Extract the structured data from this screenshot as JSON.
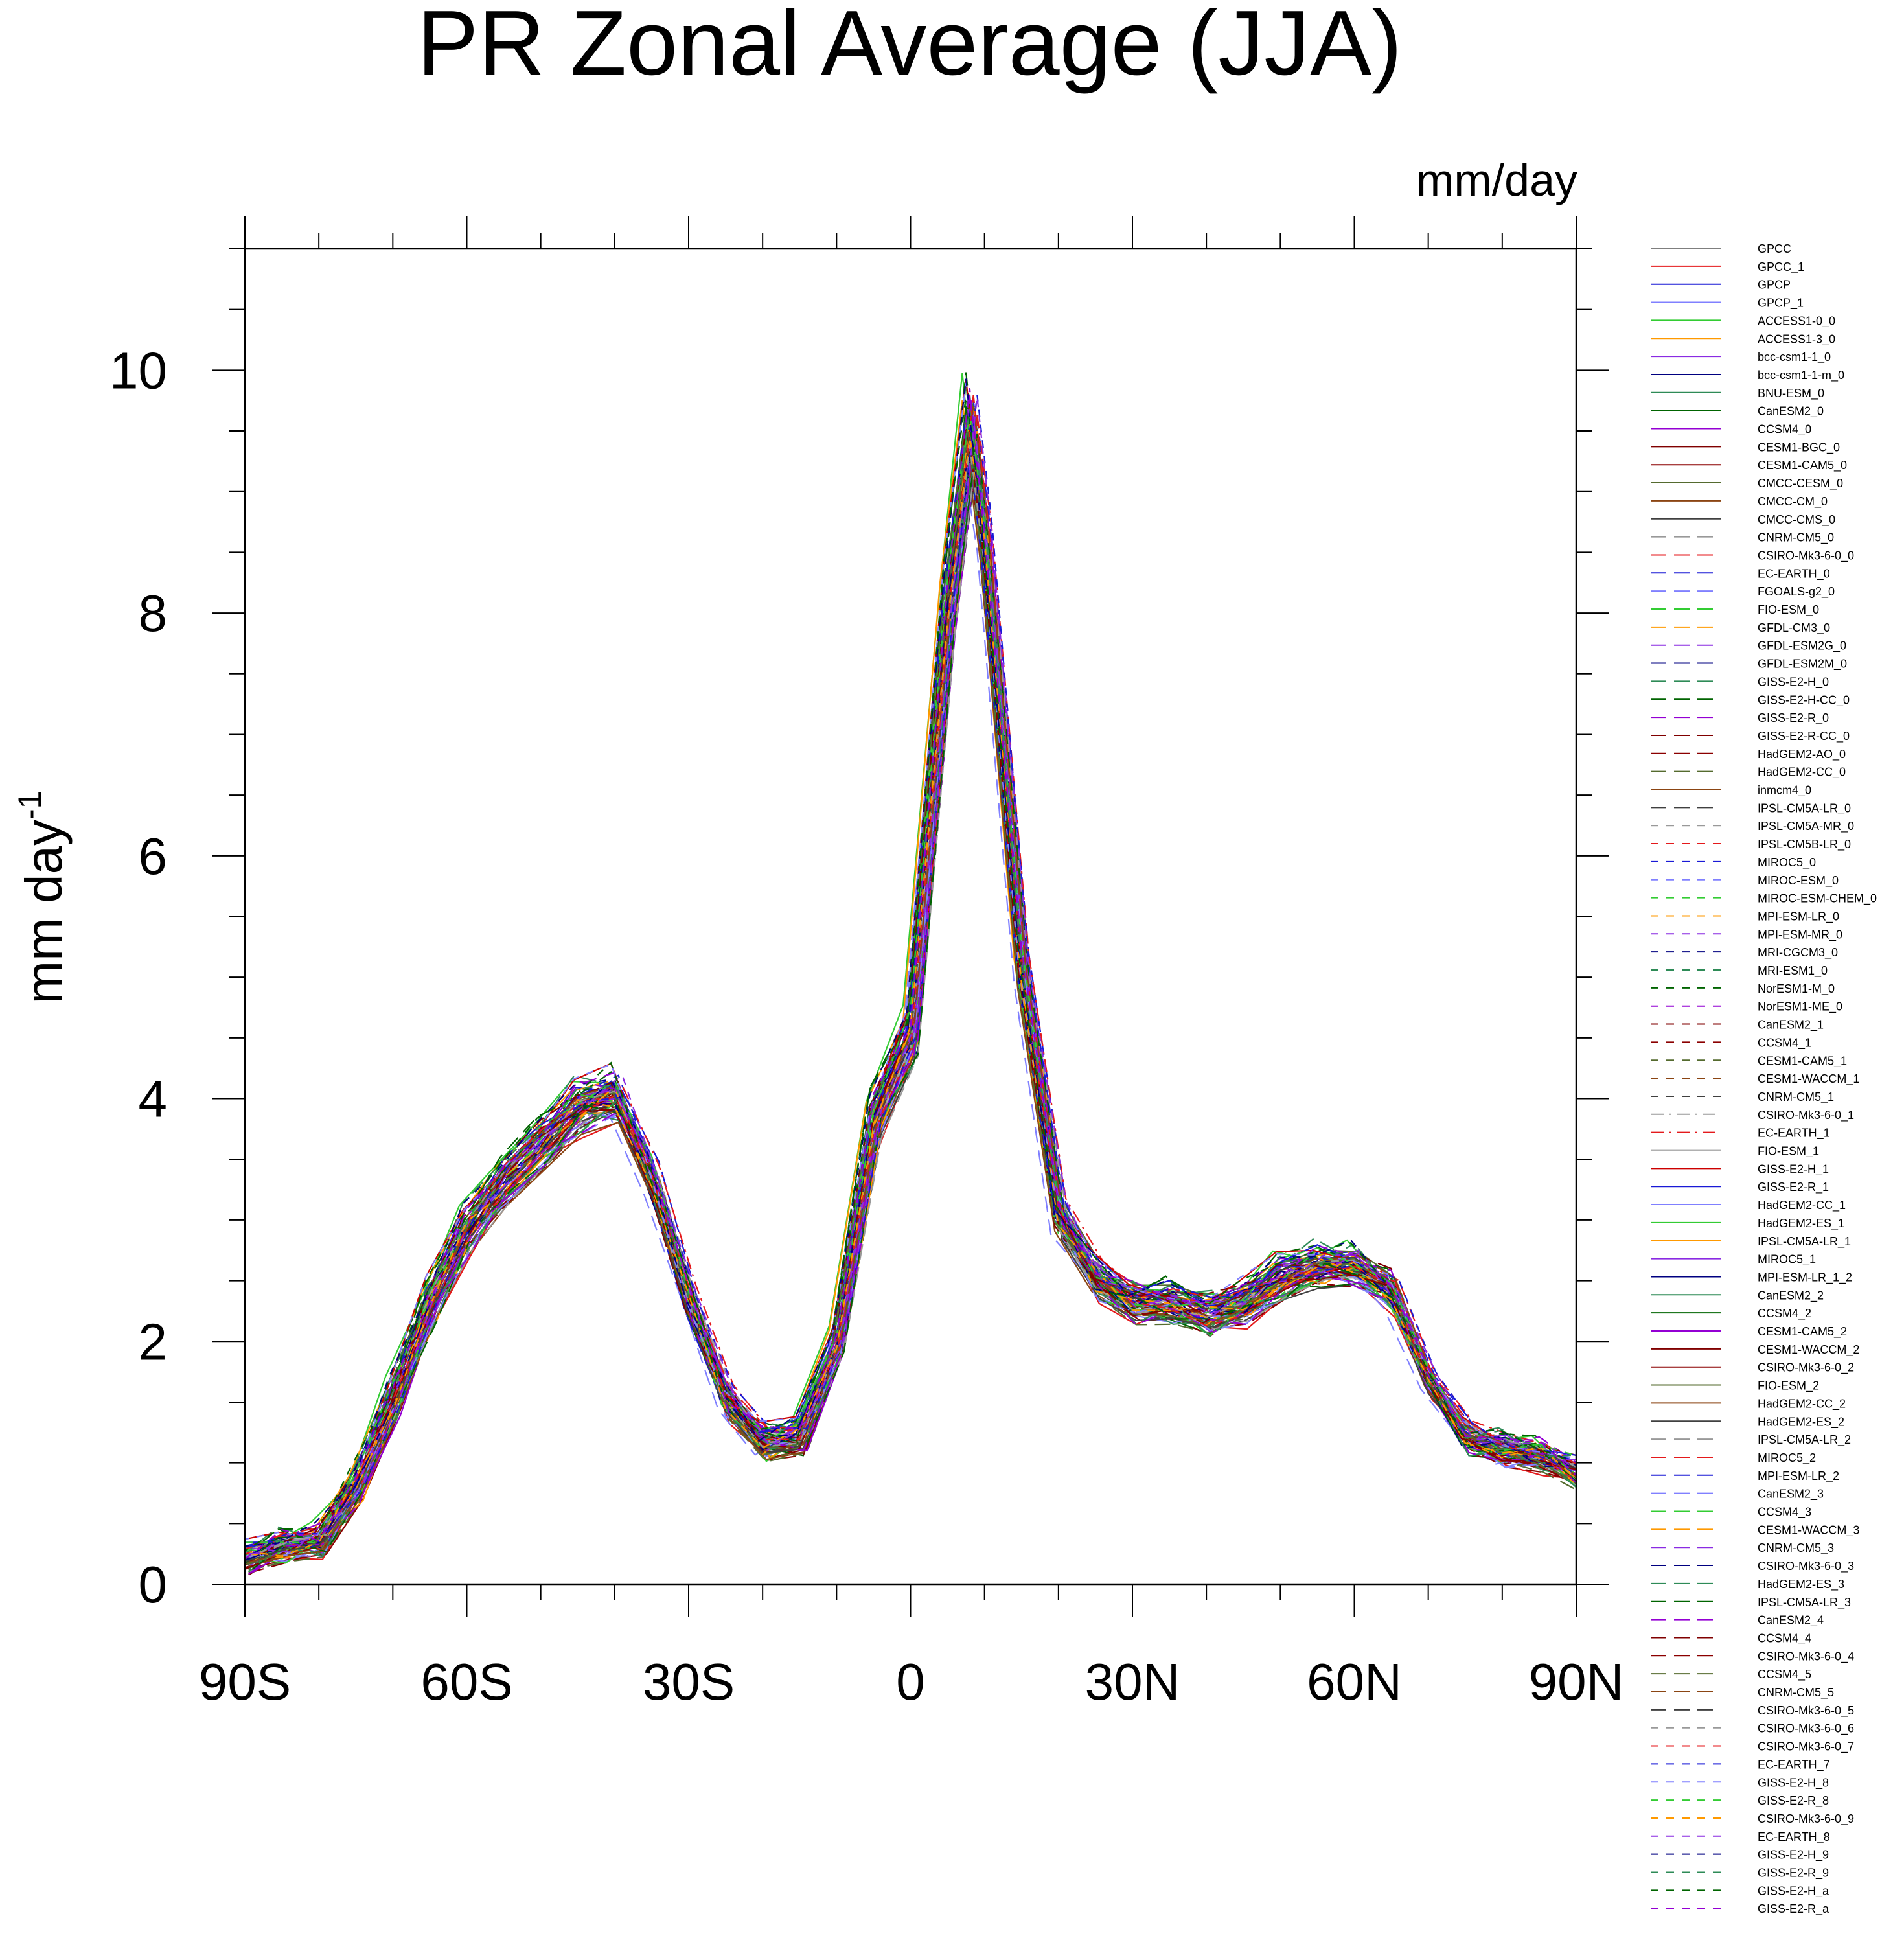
{
  "chart_data": {
    "type": "line",
    "title": "PR Zonal Average (JJA)",
    "units": "mm/day",
    "ylabel": "mm day",
    "ylabel_sup": "-1",
    "xlabel": "",
    "xlim": [
      -90,
      90
    ],
    "ylim": [
      0,
      11
    ],
    "xticks": [
      {
        "value": -90,
        "label": "90S"
      },
      {
        "value": -60,
        "label": "60S"
      },
      {
        "value": -30,
        "label": "30S"
      },
      {
        "value": 0,
        "label": "0"
      },
      {
        "value": 30,
        "label": "30N"
      },
      {
        "value": 60,
        "label": "60N"
      },
      {
        "value": 90,
        "label": "90N"
      }
    ],
    "yticks": [
      {
        "value": 0,
        "label": "0"
      },
      {
        "value": 2,
        "label": "2"
      },
      {
        "value": 4,
        "label": "4"
      },
      {
        "value": 6,
        "label": "6"
      },
      {
        "value": 8,
        "label": "8"
      },
      {
        "value": 10,
        "label": "10"
      }
    ],
    "x": [
      -90,
      -85,
      -80,
      -75,
      -70,
      -65,
      -60,
      -55,
      -50,
      -45,
      -40,
      -35,
      -30,
      -25,
      -20,
      -15,
      -10,
      -5,
      0,
      5,
      8,
      10,
      15,
      20,
      25,
      30,
      35,
      40,
      45,
      50,
      55,
      60,
      65,
      70,
      75,
      80,
      85,
      90
    ],
    "reference_profile": [
      0.2,
      0.3,
      0.35,
      0.8,
      1.5,
      2.3,
      2.9,
      3.3,
      3.6,
      3.9,
      4.0,
      3.3,
      2.3,
      1.5,
      1.15,
      1.2,
      2.0,
      3.8,
      4.5,
      8.0,
      9.5,
      8.5,
      5.0,
      3.0,
      2.5,
      2.3,
      2.3,
      2.2,
      2.3,
      2.5,
      2.6,
      2.6,
      2.4,
      1.6,
      1.2,
      1.1,
      1.05,
      0.9
    ],
    "series": [
      {
        "name": "GPCC",
        "color": "#7f7f7f",
        "dash": "solid",
        "offset": 0.05,
        "xshift": 0
      },
      {
        "name": "GPCC_1",
        "color": "#e41a1c",
        "dash": "solid",
        "offset": -0.15,
        "xshift": 0.5
      },
      {
        "name": "GPCP",
        "color": "#1a1ad6",
        "dash": "solid",
        "offset": 0.1,
        "xshift": -0.5
      },
      {
        "name": "GPCP_1",
        "color": "#8080ff",
        "dash": "solid",
        "offset": 0.0,
        "xshift": 0
      },
      {
        "name": "ACCESS1-0_0",
        "color": "#33cc33",
        "dash": "solid",
        "offset": 0.2,
        "xshift": -1
      },
      {
        "name": "ACCESS1-3_0",
        "color": "#ff9900",
        "dash": "solid",
        "offset": 0.15,
        "xshift": -1
      },
      {
        "name": "bcc-csm1-1_0",
        "color": "#8a2be2",
        "dash": "solid",
        "offset": -0.05,
        "xshift": 0.5
      },
      {
        "name": "bcc-csm1-1-m_0",
        "color": "#000080",
        "dash": "solid",
        "offset": 0.0,
        "xshift": 1
      },
      {
        "name": "BNU-ESM_0",
        "color": "#2e8b57",
        "dash": "solid",
        "offset": 0.1,
        "xshift": 0
      },
      {
        "name": "CanESM2_0",
        "color": "#006400",
        "dash": "solid",
        "offset": -0.1,
        "xshift": 0.5
      },
      {
        "name": "CCSM4_0",
        "color": "#9400d3",
        "dash": "solid",
        "offset": 0.05,
        "xshift": -0.5
      },
      {
        "name": "CESM1-BGC_0",
        "color": "#800000",
        "dash": "solid",
        "offset": 0.0,
        "xshift": 0
      },
      {
        "name": "CESM1-CAM5_0",
        "color": "#8b0000",
        "dash": "solid",
        "offset": -0.05,
        "xshift": 1
      },
      {
        "name": "CMCC-CESM_0",
        "color": "#556b2f",
        "dash": "solid",
        "offset": 0.1,
        "xshift": 0.5
      },
      {
        "name": "CMCC-CM_0",
        "color": "#8b4513",
        "dash": "solid",
        "offset": 0.0,
        "xshift": -0.5
      },
      {
        "name": "CMCC-CMS_0",
        "color": "#404040",
        "dash": "solid",
        "offset": -0.1,
        "xshift": 0
      },
      {
        "name": "CNRM-CM5_0",
        "color": "#999999",
        "dash": "long",
        "offset": 0.05,
        "xshift": 0.5
      },
      {
        "name": "CSIRO-Mk3-6-0_0",
        "color": "#e41a1c",
        "dash": "long",
        "offset": 0.0,
        "xshift": 0
      },
      {
        "name": "EC-EARTH_0",
        "color": "#1a1ad6",
        "dash": "long",
        "offset": 0.1,
        "xshift": 1
      },
      {
        "name": "FGOALS-g2_0",
        "color": "#8080ff",
        "dash": "long",
        "offset": -0.05,
        "xshift": -1
      },
      {
        "name": "FIO-ESM_0",
        "color": "#33cc33",
        "dash": "long",
        "offset": 0.0,
        "xshift": 0
      },
      {
        "name": "GFDL-CM3_0",
        "color": "#ff9900",
        "dash": "long",
        "offset": 0.05,
        "xshift": 0.5
      },
      {
        "name": "GFDL-ESM2G_0",
        "color": "#8a2be2",
        "dash": "long",
        "offset": 0.1,
        "xshift": 0
      },
      {
        "name": "GFDL-ESM2M_0",
        "color": "#000080",
        "dash": "long",
        "offset": 0.05,
        "xshift": 0.5
      },
      {
        "name": "GISS-E2-H_0",
        "color": "#2e8b57",
        "dash": "long",
        "offset": 0.2,
        "xshift": -0.5
      },
      {
        "name": "GISS-E2-H-CC_0",
        "color": "#006400",
        "dash": "long",
        "offset": 0.2,
        "xshift": -0.5
      },
      {
        "name": "GISS-E2-R_0",
        "color": "#9400d3",
        "dash": "long",
        "offset": 0.15,
        "xshift": 0
      },
      {
        "name": "GISS-E2-R-CC_0",
        "color": "#800000",
        "dash": "long",
        "offset": 0.15,
        "xshift": 0
      },
      {
        "name": "HadGEM2-AO_0",
        "color": "#8b0000",
        "dash": "long",
        "offset": -0.1,
        "xshift": 0.5
      },
      {
        "name": "HadGEM2-CC_0",
        "color": "#556b2f",
        "dash": "long",
        "offset": -0.1,
        "xshift": 0.5
      },
      {
        "name": "inmcm4_0",
        "color": "#8b4513",
        "dash": "solid",
        "offset": 0.0,
        "xshift": 0
      },
      {
        "name": "IPSL-CM5A-LR_0",
        "color": "#404040",
        "dash": "long",
        "offset": -0.05,
        "xshift": 1
      },
      {
        "name": "IPSL-CM5A-MR_0",
        "color": "#999999",
        "dash": "dash",
        "offset": 0.0,
        "xshift": 1
      },
      {
        "name": "IPSL-CM5B-LR_0",
        "color": "#e41a1c",
        "dash": "dash",
        "offset": 0.05,
        "xshift": 0
      },
      {
        "name": "MIROC5_0",
        "color": "#1a1ad6",
        "dash": "dash",
        "offset": 0.1,
        "xshift": 0.5
      },
      {
        "name": "MIROC-ESM_0",
        "color": "#8080ff",
        "dash": "dash",
        "offset": -0.05,
        "xshift": 0
      },
      {
        "name": "MIROC-ESM-CHEM_0",
        "color": "#33cc33",
        "dash": "dash",
        "offset": -0.05,
        "xshift": 0
      },
      {
        "name": "MPI-ESM-LR_0",
        "color": "#ff9900",
        "dash": "dash",
        "offset": 0.05,
        "xshift": -0.5
      },
      {
        "name": "MPI-ESM-MR_0",
        "color": "#8a2be2",
        "dash": "dash",
        "offset": 0.05,
        "xshift": -0.5
      },
      {
        "name": "MRI-CGCM3_0",
        "color": "#000080",
        "dash": "dash",
        "offset": 0.0,
        "xshift": 0.5
      },
      {
        "name": "MRI-ESM1_0",
        "color": "#2e8b57",
        "dash": "dash",
        "offset": 0.0,
        "xshift": 0.5
      },
      {
        "name": "NorESM1-M_0",
        "color": "#006400",
        "dash": "dash",
        "offset": 0.1,
        "xshift": 0
      },
      {
        "name": "NorESM1-ME_0",
        "color": "#9400d3",
        "dash": "dash",
        "offset": 0.1,
        "xshift": 0
      },
      {
        "name": "CanESM2_1",
        "color": "#800000",
        "dash": "dash",
        "offset": -0.1,
        "xshift": 0.5
      },
      {
        "name": "CCSM4_1",
        "color": "#8b0000",
        "dash": "dash",
        "offset": 0.05,
        "xshift": -0.5
      },
      {
        "name": "CESM1-CAM5_1",
        "color": "#556b2f",
        "dash": "dash",
        "offset": -0.05,
        "xshift": 1
      },
      {
        "name": "CESM1-WACCM_1",
        "color": "#8b4513",
        "dash": "dash",
        "offset": 0.0,
        "xshift": 0
      },
      {
        "name": "CNRM-CM5_1",
        "color": "#404040",
        "dash": "dash",
        "offset": 0.05,
        "xshift": 0.5
      },
      {
        "name": "CSIRO-Mk3-6-0_1",
        "color": "#999999",
        "dash": "dashdot",
        "offset": 0.0,
        "xshift": 0
      },
      {
        "name": "EC-EARTH_1",
        "color": "#e41a1c",
        "dash": "dashdot",
        "offset": 0.1,
        "xshift": 1
      },
      {
        "name": "FIO-ESM_1",
        "color": "#b0b0b0",
        "dash": "solid",
        "offset": 0.0,
        "xshift": 0
      },
      {
        "name": "GISS-E2-H_1",
        "color": "#cc0000",
        "dash": "solid",
        "offset": 0.2,
        "xshift": -0.5
      },
      {
        "name": "GISS-E2-R_1",
        "color": "#1a1ad6",
        "dash": "solid",
        "offset": 0.15,
        "xshift": 0
      },
      {
        "name": "HadGEM2-CC_1",
        "color": "#8080ff",
        "dash": "solid",
        "offset": -0.1,
        "xshift": 0.5
      },
      {
        "name": "HadGEM2-ES_1",
        "color": "#33cc33",
        "dash": "solid",
        "offset": -0.1,
        "xshift": 0.5
      },
      {
        "name": "IPSL-CM5A-LR_1",
        "color": "#ff9900",
        "dash": "solid",
        "offset": -0.05,
        "xshift": 1
      },
      {
        "name": "MIROC5_1",
        "color": "#8a2be2",
        "dash": "solid",
        "offset": 0.1,
        "xshift": 0.5
      },
      {
        "name": "MPI-ESM-LR_1_2",
        "color": "#000080",
        "dash": "solid",
        "offset": 0.05,
        "xshift": -0.5
      },
      {
        "name": "CanESM2_2",
        "color": "#2e8b57",
        "dash": "solid",
        "offset": -0.1,
        "xshift": 0.5
      },
      {
        "name": "CCSM4_2",
        "color": "#006400",
        "dash": "solid",
        "offset": 0.05,
        "xshift": -0.5
      },
      {
        "name": "CESM1-CAM5_2",
        "color": "#9400d3",
        "dash": "solid",
        "offset": -0.05,
        "xshift": 1
      },
      {
        "name": "CESM1-WACCM_2",
        "color": "#800000",
        "dash": "solid",
        "offset": 0.0,
        "xshift": 0
      },
      {
        "name": "CSIRO-Mk3-6-0_2",
        "color": "#8b0000",
        "dash": "solid",
        "offset": 0.0,
        "xshift": 0
      },
      {
        "name": "FIO-ESM_2",
        "color": "#556b2f",
        "dash": "solid",
        "offset": 0.0,
        "xshift": 0
      },
      {
        "name": "HadGEM2-CC_2",
        "color": "#8b4513",
        "dash": "solid",
        "offset": -0.1,
        "xshift": 0.5
      },
      {
        "name": "HadGEM2-ES_2",
        "color": "#404040",
        "dash": "solid",
        "offset": -0.1,
        "xshift": 0.5
      },
      {
        "name": "IPSL-CM5A-LR_2",
        "color": "#999999",
        "dash": "long",
        "offset": -0.05,
        "xshift": 1
      },
      {
        "name": "MIROC5_2",
        "color": "#e41a1c",
        "dash": "long",
        "offset": 0.1,
        "xshift": 0.5
      },
      {
        "name": "MPI-ESM-LR_2",
        "color": "#1a1ad6",
        "dash": "long",
        "offset": 0.05,
        "xshift": -0.5
      },
      {
        "name": "CanESM2_3",
        "color": "#8080ff",
        "dash": "long",
        "offset": -0.1,
        "xshift": 0.5
      },
      {
        "name": "CCSM4_3",
        "color": "#33cc33",
        "dash": "long",
        "offset": 0.05,
        "xshift": -0.5
      },
      {
        "name": "CESM1-WACCM_3",
        "color": "#ff9900",
        "dash": "long",
        "offset": 0.0,
        "xshift": 0
      },
      {
        "name": "CNRM-CM5_3",
        "color": "#8a2be2",
        "dash": "long",
        "offset": 0.05,
        "xshift": 0.5
      },
      {
        "name": "CSIRO-Mk3-6-0_3",
        "color": "#000080",
        "dash": "long",
        "offset": 0.0,
        "xshift": 0
      },
      {
        "name": "HadGEM2-ES_3",
        "color": "#2e8b57",
        "dash": "long",
        "offset": -0.1,
        "xshift": 0.5
      },
      {
        "name": "IPSL-CM5A-LR_3",
        "color": "#006400",
        "dash": "long",
        "offset": -0.05,
        "xshift": 1
      },
      {
        "name": "CanESM2_4",
        "color": "#9400d3",
        "dash": "long",
        "offset": -0.1,
        "xshift": 0.5
      },
      {
        "name": "CCSM4_4",
        "color": "#800000",
        "dash": "long",
        "offset": 0.05,
        "xshift": -0.5
      },
      {
        "name": "CSIRO-Mk3-6-0_4",
        "color": "#8b0000",
        "dash": "long",
        "offset": 0.0,
        "xshift": 0
      },
      {
        "name": "CCSM4_5",
        "color": "#556b2f",
        "dash": "long",
        "offset": 0.05,
        "xshift": -0.5
      },
      {
        "name": "CNRM-CM5_5",
        "color": "#8b4513",
        "dash": "long",
        "offset": 0.05,
        "xshift": 0.5
      },
      {
        "name": "CSIRO-Mk3-6-0_5",
        "color": "#404040",
        "dash": "long",
        "offset": 0.0,
        "xshift": 0
      },
      {
        "name": "CSIRO-Mk3-6-0_6",
        "color": "#999999",
        "dash": "dash",
        "offset": 0.0,
        "xshift": 0
      },
      {
        "name": "CSIRO-Mk3-6-0_7",
        "color": "#e41a1c",
        "dash": "dash",
        "offset": 0.0,
        "xshift": 0
      },
      {
        "name": "EC-EARTH_7",
        "color": "#1a1ad6",
        "dash": "dash",
        "offset": 0.1,
        "xshift": 1
      },
      {
        "name": "GISS-E2-H_8",
        "color": "#8080ff",
        "dash": "dash",
        "offset": 0.2,
        "xshift": -0.5
      },
      {
        "name": "GISS-E2-R_8",
        "color": "#33cc33",
        "dash": "dash",
        "offset": 0.15,
        "xshift": 0
      },
      {
        "name": "CSIRO-Mk3-6-0_9",
        "color": "#ff9900",
        "dash": "dash",
        "offset": 0.0,
        "xshift": 0
      },
      {
        "name": "EC-EARTH_8",
        "color": "#8a2be2",
        "dash": "dash",
        "offset": 0.1,
        "xshift": 1
      },
      {
        "name": "GISS-E2-H_9",
        "color": "#000080",
        "dash": "dash",
        "offset": 0.2,
        "xshift": -0.5
      },
      {
        "name": "GISS-E2-R_9",
        "color": "#2e8b57",
        "dash": "dash",
        "offset": 0.15,
        "xshift": 0
      },
      {
        "name": "GISS-E2-H_a",
        "color": "#006400",
        "dash": "dash",
        "offset": 0.2,
        "xshift": -0.5
      },
      {
        "name": "GISS-E2-R_a",
        "color": "#9400d3",
        "dash": "dash",
        "offset": 0.15,
        "xshift": 0
      }
    ]
  }
}
